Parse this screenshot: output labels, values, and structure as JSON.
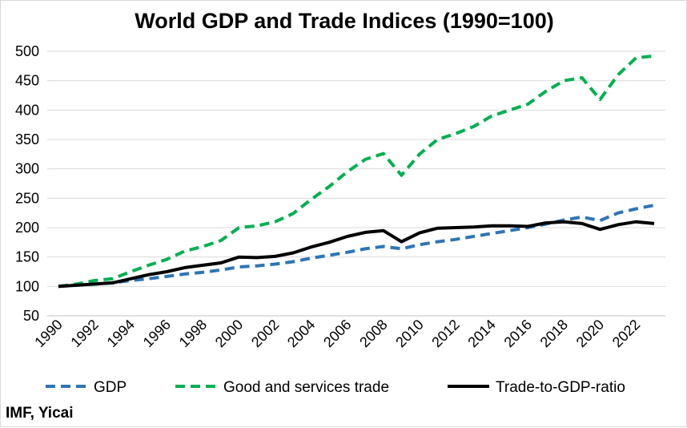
{
  "chart_data": {
    "type": "line",
    "title": "World GDP and Trade Indices (1990=100)",
    "xlabel": "",
    "ylabel": "",
    "ylim": [
      50,
      500
    ],
    "yticks": [
      50,
      100,
      150,
      200,
      250,
      300,
      350,
      400,
      450,
      500
    ],
    "xlim": [
      1990,
      2023
    ],
    "xtick_labels": [
      "1990",
      "1992",
      "1994",
      "1996",
      "1998",
      "2000",
      "2002",
      "2004",
      "2006",
      "2008",
      "2010",
      "2012",
      "2014",
      "2016",
      "2018",
      "2020",
      "2022"
    ],
    "grid": "horizontal",
    "legend_position": "bottom",
    "x": [
      1990,
      1991,
      1992,
      1993,
      1994,
      1995,
      1996,
      1997,
      1998,
      1999,
      2000,
      2001,
      2002,
      2003,
      2004,
      2005,
      2006,
      2007,
      2008,
      2009,
      2010,
      2011,
      2012,
      2013,
      2014,
      2015,
      2016,
      2017,
      2018,
      2019,
      2020,
      2021,
      2022,
      2023
    ],
    "series": [
      {
        "name": "GDP",
        "color": "#2E75B6",
        "style": "dashed",
        "values": [
          100,
          102,
          104,
          106,
          110,
          113,
          117,
          121,
          124,
          128,
          133,
          135,
          138,
          142,
          148,
          153,
          158,
          164,
          168,
          164,
          171,
          176,
          180,
          185,
          190,
          195,
          200,
          206,
          213,
          218,
          212,
          225,
          232,
          238
        ]
      },
      {
        "name": "Good and services trade",
        "color": "#00B050",
        "style": "dashed",
        "values": [
          100,
          104,
          110,
          113,
          125,
          136,
          146,
          160,
          168,
          178,
          200,
          203,
          210,
          224,
          248,
          270,
          295,
          316,
          326,
          289,
          325,
          350,
          360,
          372,
          390,
          400,
          410,
          432,
          450,
          455,
          418,
          460,
          489,
          492
        ]
      },
      {
        "name": "Trade-to-GDP-ratio",
        "color": "#000000",
        "style": "solid",
        "values": [
          100,
          102,
          104,
          106,
          113,
          120,
          125,
          132,
          136,
          140,
          150,
          149,
          151,
          157,
          167,
          175,
          185,
          192,
          195,
          176,
          191,
          199,
          200,
          201,
          203,
          203,
          202,
          208,
          210,
          207,
          197,
          205,
          210,
          207
        ]
      }
    ]
  },
  "source_text": "IMF, Yicai"
}
